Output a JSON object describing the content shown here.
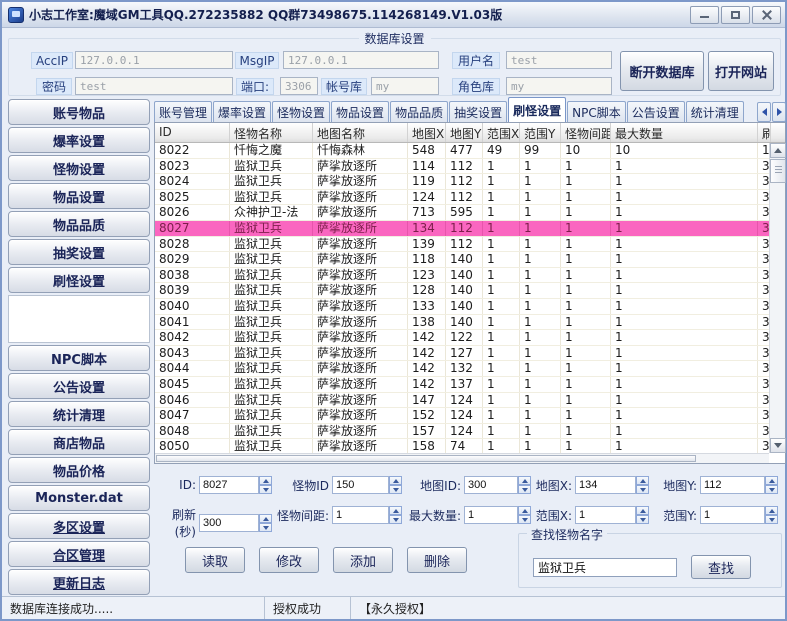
{
  "window": {
    "title": "小志工作室:魔域GM工具QQ.272235882 QQ群73498675.114268149.V1.03版",
    "controls": [
      "minimize",
      "maximize",
      "close"
    ]
  },
  "db_panel": {
    "title": "数据库设置",
    "accip_label": "AccIP",
    "accip_value": "127.0.0.1",
    "msgip_label": "MsgIP",
    "msgip_value": "127.0.0.1",
    "username_label": "用户名",
    "username_value": "test",
    "password_label": "密码",
    "password_value": "test",
    "port_label": "端口:",
    "port_value": "3306",
    "accdb_label": "帐号库",
    "accdb_value": "my",
    "roledb_label": "角色库",
    "roledb_value": "my",
    "disconnect_button": "断开数据库",
    "website_button": "打开网站"
  },
  "sidebar": {
    "items": [
      {
        "label": "账号物品",
        "underlined": false
      },
      {
        "label": "爆率设置",
        "underlined": false
      },
      {
        "label": "怪物设置",
        "underlined": false
      },
      {
        "label": "物品设置",
        "underlined": false
      },
      {
        "label": "物品品质",
        "underlined": false
      },
      {
        "label": "抽奖设置",
        "underlined": false
      },
      {
        "label": "刷怪设置",
        "underlined": false
      },
      {
        "label": "NPC脚本",
        "underlined": false
      },
      {
        "label": "公告设置",
        "underlined": false
      },
      {
        "label": "统计清理",
        "underlined": false
      },
      {
        "label": "商店物品",
        "underlined": false
      },
      {
        "label": "物品价格",
        "underlined": false
      },
      {
        "label": "Monster.dat",
        "underlined": false
      },
      {
        "label": "多区设置",
        "underlined": true
      },
      {
        "label": "合区管理",
        "underlined": true
      },
      {
        "label": "更新日志",
        "underlined": true
      }
    ]
  },
  "tabs": {
    "items": [
      "账号管理",
      "爆率设置",
      "怪物设置",
      "物品设置",
      "物品品质",
      "抽奖设置",
      "刷怪设置",
      "NPC脚本",
      "公告设置",
      "统计清理"
    ],
    "active": "刷怪设置"
  },
  "table": {
    "columns": [
      "ID",
      "怪物名称",
      "地图名称",
      "地图X",
      "地图Y",
      "范围X",
      "范围Y",
      "怪物间距",
      "最大数量",
      "刷"
    ],
    "selected_id": "8027",
    "rows": [
      [
        "8022",
        "忏悔之魔",
        "忏悔森林",
        "548",
        "477",
        "49",
        "99",
        "10",
        "10",
        "1"
      ],
      [
        "8023",
        "监狱卫兵",
        "萨挲放逐所",
        "114",
        "112",
        "1",
        "1",
        "1",
        "1",
        "3"
      ],
      [
        "8024",
        "监狱卫兵",
        "萨挲放逐所",
        "119",
        "112",
        "1",
        "1",
        "1",
        "1",
        "3"
      ],
      [
        "8025",
        "监狱卫兵",
        "萨挲放逐所",
        "124",
        "112",
        "1",
        "1",
        "1",
        "1",
        "3"
      ],
      [
        "8026",
        "众神护卫-法",
        "萨挲放逐所",
        "713",
        "595",
        "1",
        "1",
        "1",
        "1",
        "3"
      ],
      [
        "8027",
        "监狱卫兵",
        "萨挲放逐所",
        "134",
        "112",
        "1",
        "1",
        "1",
        "1",
        "3"
      ],
      [
        "8028",
        "监狱卫兵",
        "萨挲放逐所",
        "139",
        "112",
        "1",
        "1",
        "1",
        "1",
        "3"
      ],
      [
        "8029",
        "监狱卫兵",
        "萨挲放逐所",
        "118",
        "140",
        "1",
        "1",
        "1",
        "1",
        "3"
      ],
      [
        "8038",
        "监狱卫兵",
        "萨挲放逐所",
        "123",
        "140",
        "1",
        "1",
        "1",
        "1",
        "3"
      ],
      [
        "8039",
        "监狱卫兵",
        "萨挲放逐所",
        "128",
        "140",
        "1",
        "1",
        "1",
        "1",
        "3"
      ],
      [
        "8040",
        "监狱卫兵",
        "萨挲放逐所",
        "133",
        "140",
        "1",
        "1",
        "1",
        "1",
        "3"
      ],
      [
        "8041",
        "监狱卫兵",
        "萨挲放逐所",
        "138",
        "140",
        "1",
        "1",
        "1",
        "1",
        "3"
      ],
      [
        "8042",
        "监狱卫兵",
        "萨挲放逐所",
        "142",
        "122",
        "1",
        "1",
        "1",
        "1",
        "3"
      ],
      [
        "8043",
        "监狱卫兵",
        "萨挲放逐所",
        "142",
        "127",
        "1",
        "1",
        "1",
        "1",
        "3"
      ],
      [
        "8044",
        "监狱卫兵",
        "萨挲放逐所",
        "142",
        "132",
        "1",
        "1",
        "1",
        "1",
        "3"
      ],
      [
        "8045",
        "监狱卫兵",
        "萨挲放逐所",
        "142",
        "137",
        "1",
        "1",
        "1",
        "1",
        "3"
      ],
      [
        "8046",
        "监狱卫兵",
        "萨挲放逐所",
        "147",
        "124",
        "1",
        "1",
        "1",
        "1",
        "3"
      ],
      [
        "8047",
        "监狱卫兵",
        "萨挲放逐所",
        "152",
        "124",
        "1",
        "1",
        "1",
        "1",
        "3"
      ],
      [
        "8048",
        "监狱卫兵",
        "萨挲放逐所",
        "157",
        "124",
        "1",
        "1",
        "1",
        "1",
        "3"
      ],
      [
        "8050",
        "监狱卫兵",
        "萨挲放逐所",
        "158",
        "74",
        "1",
        "1",
        "1",
        "1",
        "3"
      ]
    ]
  },
  "form": {
    "rows": [
      [
        {
          "label": "ID:",
          "value": "8027"
        },
        {
          "label": "怪物ID",
          "value": "150"
        },
        {
          "label": "地图ID:",
          "value": "300"
        },
        {
          "label": "地图X:",
          "value": "134"
        },
        {
          "label": "地图Y:",
          "value": "112"
        }
      ],
      [
        {
          "label": "刷新(秒)",
          "value": "300"
        },
        {
          "label": "怪物间距:",
          "value": "1"
        },
        {
          "label": "最大数量:",
          "value": "1"
        },
        {
          "label": "范围X:",
          "value": "1"
        },
        {
          "label": "范围Y:",
          "value": "1"
        }
      ]
    ]
  },
  "actions": {
    "buttons": [
      "读取",
      "修改",
      "添加",
      "删除"
    ]
  },
  "search": {
    "title": "查找怪物名字",
    "value": "监狱卫兵",
    "button": "查找"
  },
  "statusbar": {
    "sections": [
      "数据库连接成功.....",
      "授权成功",
      "【永久授权】"
    ]
  },
  "colors": {
    "selected_row_bg": "#fa66c0",
    "selected_row_text": "#7d1f4a",
    "button_text": "#1a2458",
    "window_bg": "#e9eef7"
  }
}
